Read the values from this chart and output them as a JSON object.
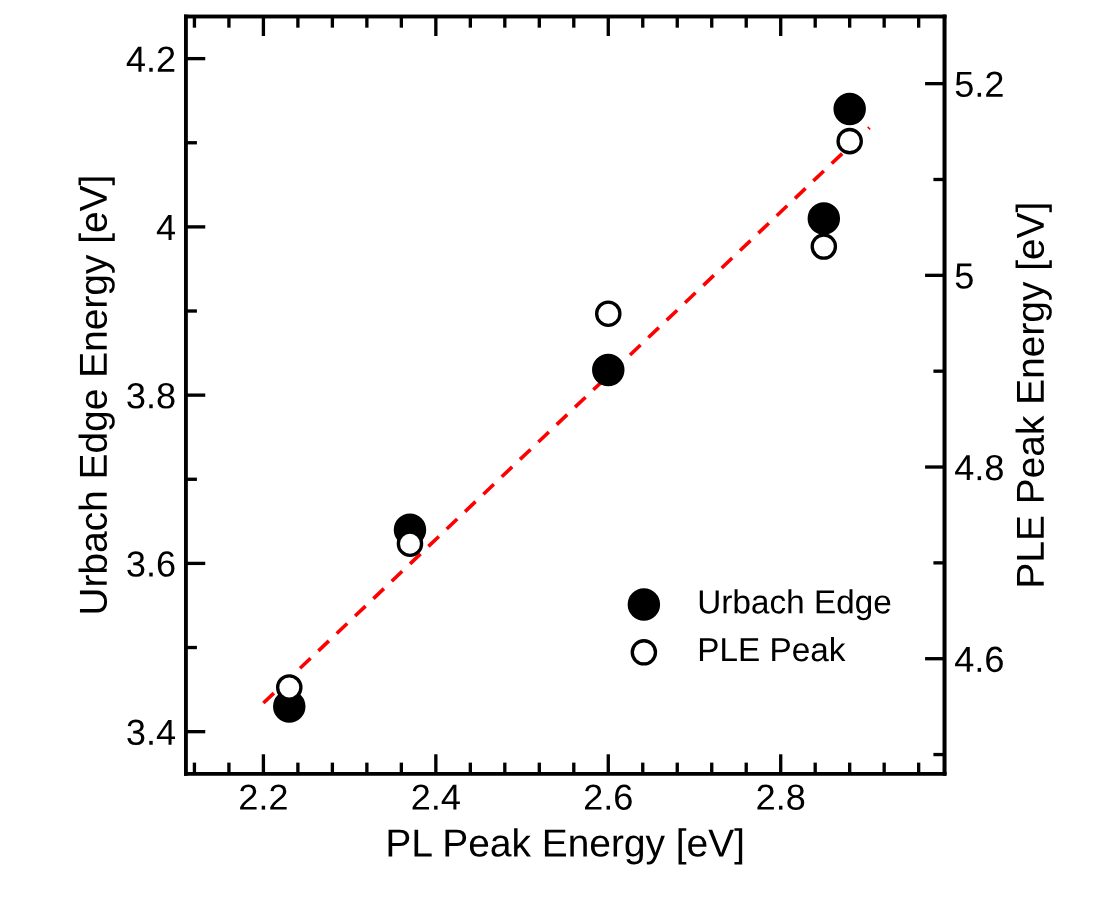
{
  "chart_data": {
    "type": "scatter",
    "xlabel": "PL Peak Energy [eV]",
    "ylabel": "Urbach Edge Energy [eV]",
    "y2label": "PLE Peak Energy [eV]",
    "marker": "circle",
    "legend": "bottom right",
    "grid": false,
    "xlim": [
      2.11,
      2.99
    ],
    "ylim": [
      3.35,
      4.25
    ],
    "y2lim": [
      4.48,
      5.27
    ],
    "xticks": [
      {
        "value": 2.12,
        "label": null
      },
      {
        "value": 2.16,
        "label": null
      },
      2.2,
      {
        "value": 2.24,
        "label": null
      },
      {
        "value": 2.28,
        "label": null
      },
      {
        "value": 2.32,
        "label": null
      },
      {
        "value": 2.36,
        "label": null
      },
      2.4,
      {
        "value": 2.44,
        "label": null
      },
      {
        "value": 2.48,
        "label": null
      },
      {
        "value": 2.52,
        "label": null
      },
      {
        "value": 2.56,
        "label": null
      },
      2.6,
      {
        "value": 2.64,
        "label": null
      },
      {
        "value": 2.68,
        "label": null
      },
      {
        "value": 2.72,
        "label": null
      },
      {
        "value": 2.76,
        "label": null
      },
      2.8,
      {
        "value": 2.84,
        "label": null
      },
      {
        "value": 2.88,
        "label": null
      },
      {
        "value": 2.92,
        "label": null
      },
      {
        "value": 2.96,
        "label": null
      }
    ],
    "yticks": [
      3.4,
      {
        "value": 3.5,
        "label": null
      },
      3.6,
      {
        "value": 3.7,
        "label": null
      },
      3.8,
      {
        "value": 3.9,
        "label": null
      },
      {
        "value": 4,
        "label": "4"
      },
      {
        "value": 4.1,
        "label": null
      },
      4.2
    ],
    "y2ticks": [
      {
        "value": 4.5,
        "label": null
      },
      4.6,
      {
        "value": 4.7,
        "label": null
      },
      4.8,
      {
        "value": 4.9,
        "label": null
      },
      {
        "value": 5,
        "label": "5"
      },
      {
        "value": 5.1,
        "label": null
      },
      5.2
    ],
    "series": [
      {
        "type": "line",
        "color": "#ff0000",
        "line_style": "dashed",
        "marker": "none",
        "x": [
          2.2,
          2.903
        ],
        "values": [
          3.434,
          4.118
        ]
      },
      {
        "name": "Urbach Edge",
        "color": "#000000",
        "x": [
          2.23,
          2.37,
          2.6,
          2.85,
          2.88
        ],
        "values": [
          3.43,
          3.64,
          3.83,
          4.01,
          4.14
        ]
      },
      {
        "name": "PLE Peak",
        "color": "#ffffff",
        "axis": "y2",
        "x": [
          2.23,
          2.37,
          2.6,
          2.85,
          2.88
        ],
        "values": [
          4.57,
          4.72,
          4.96,
          5.03,
          5.14
        ]
      }
    ]
  }
}
